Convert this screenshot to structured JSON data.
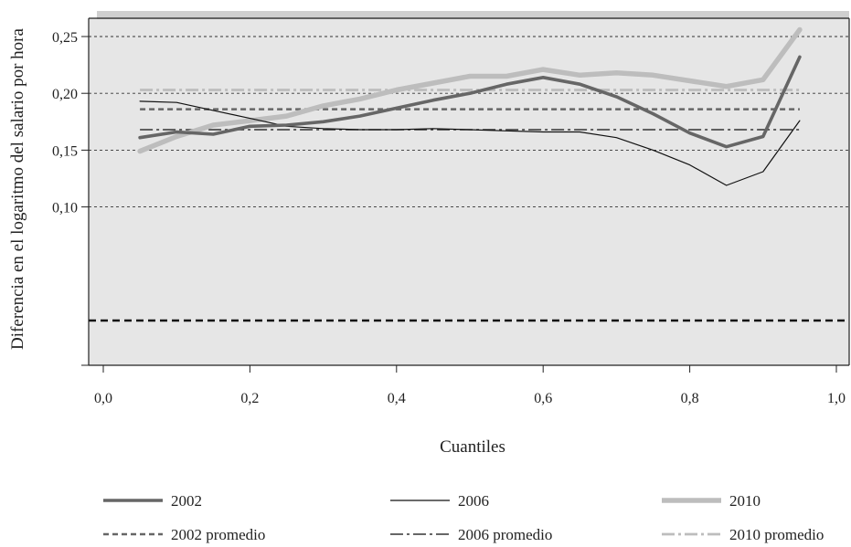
{
  "chart_data": {
    "type": "line",
    "xlabel": "Cuantiles",
    "ylabel": "Diferencia en el logaritmo del salario por hora",
    "xlim": [
      0.0,
      1.0
    ],
    "ylim": [
      -0.05,
      0.265
    ],
    "x_ticks": [
      0.0,
      0.2,
      0.4,
      0.6,
      0.8,
      1.0
    ],
    "x_tick_labels": [
      "0,0",
      "0,2",
      "0,4",
      "0,6",
      "0,8",
      "1,0"
    ],
    "y_ticks": [
      0.1,
      0.15,
      0.2,
      0.25
    ],
    "y_tick_labels": [
      "0,10",
      "0,15",
      "0,20",
      "0,25"
    ],
    "reference_y": 0.0,
    "grid": "horizontal dashed",
    "legend_position": "bottom",
    "x": [
      0.05,
      0.1,
      0.15,
      0.2,
      0.25,
      0.3,
      0.35,
      0.4,
      0.45,
      0.5,
      0.55,
      0.6,
      0.65,
      0.7,
      0.75,
      0.8,
      0.85,
      0.9,
      0.95
    ],
    "series": [
      {
        "name": "2002",
        "style": "solid-thick",
        "color": "#666666",
        "values": [
          0.161,
          0.166,
          0.164,
          0.171,
          0.172,
          0.175,
          0.18,
          0.187,
          0.194,
          0.2,
          0.208,
          0.214,
          0.208,
          0.197,
          0.182,
          0.165,
          0.153,
          0.162,
          0.232
        ]
      },
      {
        "name": "2006",
        "style": "solid-thin",
        "color": "#111111",
        "values": [
          0.193,
          0.192,
          0.185,
          0.178,
          0.171,
          0.169,
          0.168,
          0.168,
          0.169,
          0.168,
          0.167,
          0.166,
          0.166,
          0.161,
          0.15,
          0.137,
          0.119,
          0.131,
          0.176
        ]
      },
      {
        "name": "2010",
        "style": "solid-thickest",
        "color": "#bdbdbd",
        "values": [
          0.149,
          0.162,
          0.172,
          0.176,
          0.18,
          0.189,
          0.195,
          0.203,
          0.209,
          0.215,
          0.215,
          0.221,
          0.216,
          0.218,
          0.216,
          0.211,
          0.206,
          0.212,
          0.256
        ]
      },
      {
        "name": "2002 promedio",
        "style": "dashed",
        "color": "#666666",
        "constant": 0.186
      },
      {
        "name": "2006 promedio",
        "style": "dashdot",
        "color": "#333333",
        "constant": 0.168
      },
      {
        "name": "2010 promedio",
        "style": "dashdot-light",
        "color": "#bdbdbd",
        "constant": 0.203
      }
    ]
  },
  "colors": {
    "plot_background": "#e6e6e6",
    "grid": "#333333",
    "reference_line": "#111111"
  }
}
